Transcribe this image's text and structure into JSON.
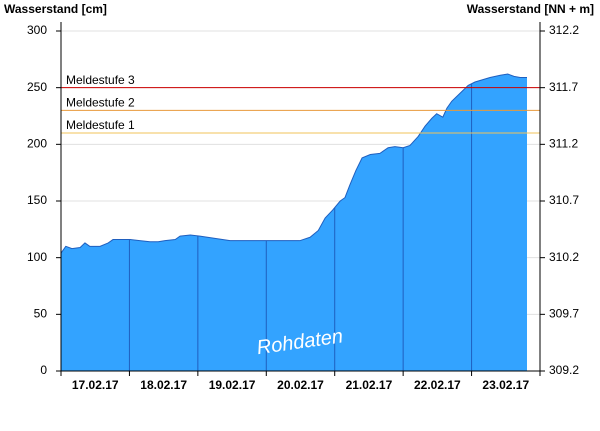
{
  "chart_data": {
    "type": "area",
    "y_label": "Wasserstand [cm]",
    "y2_label": "Wasserstand [NN + m]",
    "watermark": "Rohdaten",
    "categories": [
      "17.02.17",
      "18.02.17",
      "19.02.17",
      "20.02.17",
      "21.02.17",
      "22.02.17",
      "23.02.17"
    ],
    "xlim": [
      0,
      7
    ],
    "xticks": [
      0,
      1,
      2,
      3,
      4,
      5,
      6,
      7
    ],
    "ylim": [
      0,
      300
    ],
    "yticks": [
      0,
      50,
      100,
      150,
      200,
      250,
      300
    ],
    "y2lim": [
      309.2,
      312.2
    ],
    "y2ticks": [
      309.2,
      309.7,
      310.2,
      310.7,
      311.2,
      311.7,
      312.2
    ],
    "grid": true,
    "series": [
      {
        "color": "#33a3ff",
        "line_color": "#1f5fbf",
        "x": [
          0,
          0.07,
          0.16,
          0.28,
          0.35,
          0.42,
          0.57,
          0.69,
          0.76,
          1.01,
          1.15,
          1.3,
          1.42,
          1.52,
          1.67,
          1.74,
          1.89,
          2.03,
          2.25,
          2.47,
          3.0,
          3.49,
          3.64,
          3.76,
          3.86,
          3.97,
          4.08,
          4.15,
          4.22,
          4.31,
          4.4,
          4.52,
          4.66,
          4.78,
          4.88,
          5.0,
          5.1,
          5.22,
          5.32,
          5.42,
          5.49,
          5.58,
          5.64,
          5.71,
          5.83,
          5.95,
          6.05,
          6.27,
          6.42,
          6.53,
          6.62,
          6.71,
          6.81
        ],
        "values": [
          104,
          110,
          108,
          109,
          113,
          110,
          110,
          113,
          116,
          116,
          115,
          114,
          114,
          115,
          116,
          119,
          120,
          119,
          117,
          115,
          115,
          115,
          118,
          124,
          135,
          142,
          150,
          153,
          164,
          177,
          188,
          191,
          192,
          197,
          198,
          197,
          199,
          207,
          216,
          223,
          227,
          224,
          232,
          238,
          245,
          252,
          255,
          259,
          261,
          262,
          260,
          259,
          259
        ]
      }
    ],
    "thresholds": [
      {
        "label": "Meldestufe 3",
        "value": 250,
        "color": "#cc0000"
      },
      {
        "label": "Meldestufe 2",
        "value": 230,
        "color": "#e89a3c"
      },
      {
        "label": "Meldestufe 1",
        "value": 210,
        "color": "#f2c35a"
      }
    ]
  }
}
